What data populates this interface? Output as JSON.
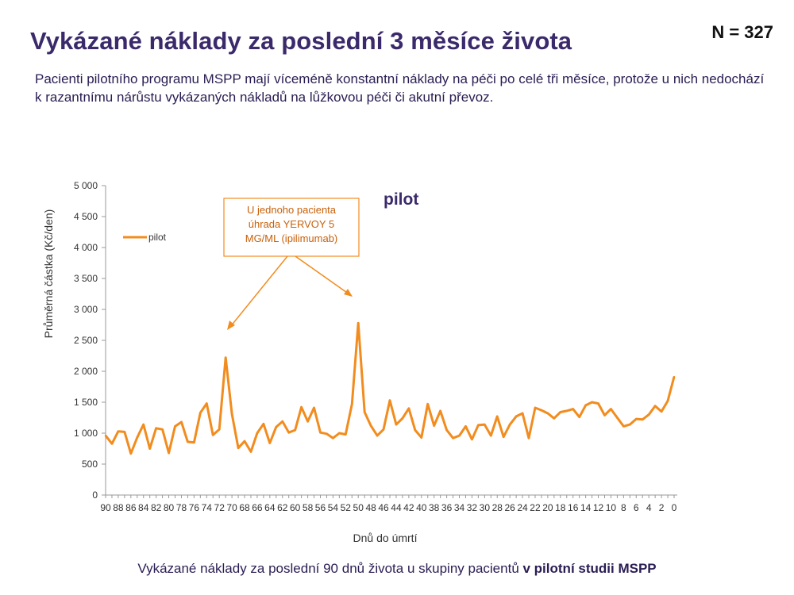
{
  "header": {
    "title": "Vykázané náklady za poslední 3 měsíce života",
    "n_count": "N = 327",
    "subtitle": "Pacienti pilotního programu MSPP mají víceméně konstantní náklady na péči po celé tři měsíce, protože  u nich nedochází k razantnímu nárůstu vykázaných nákladů na lůžkovou péči či akutní převoz."
  },
  "footer": {
    "caption_prefix": "Vykázané náklady za poslední 90 dnů života u skupiny pacientů ",
    "caption_bold": "v pilotní studii MSPP"
  },
  "chart_data": {
    "type": "line",
    "title": "pilot",
    "xlabel": "Dnů do úmrtí",
    "ylabel": "Průměrná částka (Kč/den)",
    "ylim": [
      0,
      5000
    ],
    "yticks": [
      0,
      500,
      1000,
      1500,
      2000,
      2500,
      3000,
      3500,
      4000,
      4500,
      5000
    ],
    "ytick_labels": [
      "0",
      "500",
      "1 000",
      "1 500",
      "2 000",
      "2 500",
      "3 000",
      "3 500",
      "4 000",
      "4 500",
      "5 000"
    ],
    "xlim": [
      90,
      0
    ],
    "xtick_labels": [
      "90",
      "88",
      "86",
      "84",
      "82",
      "80",
      "78",
      "76",
      "74",
      "72",
      "70",
      "68",
      "66",
      "64",
      "62",
      "60",
      "58",
      "56",
      "54",
      "52",
      "50",
      "48",
      "46",
      "44",
      "42",
      "40",
      "38",
      "36",
      "34",
      "32",
      "30",
      "28",
      "26",
      "24",
      "22",
      "20",
      "18",
      "16",
      "14",
      "12",
      "10",
      "8",
      "6",
      "4",
      "2",
      "0"
    ],
    "legend": "top-left",
    "line_color": "#f28c1e",
    "annotation": "U jednoho pacienta úhrada YERVOY 5 MG/ML (ipilimumab)",
    "series": [
      {
        "name": "pilot",
        "x": [
          90,
          89,
          88,
          87,
          86,
          85,
          84,
          83,
          82,
          81,
          80,
          79,
          78,
          77,
          76,
          75,
          74,
          73,
          72,
          71,
          70,
          69,
          68,
          67,
          66,
          65,
          64,
          63,
          62,
          61,
          60,
          59,
          58,
          57,
          56,
          55,
          54,
          53,
          52,
          51,
          50,
          49,
          48,
          47,
          46,
          45,
          44,
          43,
          42,
          41,
          40,
          39,
          38,
          37,
          36,
          35,
          34,
          33,
          32,
          31,
          30,
          29,
          28,
          27,
          26,
          25,
          24,
          23,
          22,
          21,
          20,
          19,
          18,
          17,
          16,
          15,
          14,
          13,
          12,
          11,
          10,
          9,
          8,
          7,
          6,
          5,
          4,
          3,
          2,
          1,
          0
        ],
        "values": [
          960,
          830,
          1030,
          1020,
          670,
          930,
          1140,
          750,
          1080,
          1060,
          680,
          1110,
          1180,
          860,
          850,
          1330,
          1480,
          970,
          1060,
          2220,
          1310,
          760,
          870,
          700,
          1000,
          1150,
          840,
          1100,
          1190,
          1010,
          1050,
          1420,
          1190,
          1410,
          1010,
          990,
          920,
          1000,
          980,
          1470,
          2780,
          1340,
          1120,
          960,
          1060,
          1530,
          1140,
          1240,
          1400,
          1050,
          930,
          1470,
          1120,
          1360,
          1050,
          920,
          960,
          1110,
          900,
          1130,
          1140,
          960,
          1270,
          940,
          1140,
          1270,
          1320,
          920,
          1410,
          1370,
          1320,
          1240,
          1340,
          1360,
          1390,
          1260,
          1450,
          1500,
          1480,
          1290,
          1390,
          1250,
          1110,
          1140,
          1230,
          1220,
          1300,
          1440,
          1350,
          1520,
          1910
        ]
      }
    ]
  }
}
